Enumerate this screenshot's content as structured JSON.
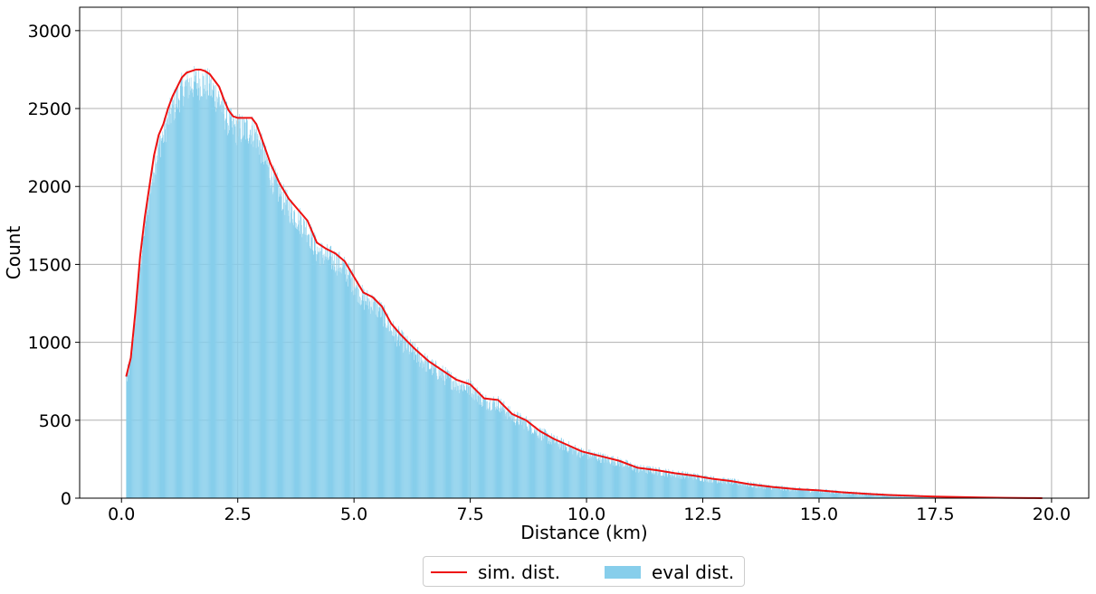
{
  "chart_data": {
    "type": "bar",
    "title": "",
    "xlabel": "Distance (km)",
    "ylabel": "Count",
    "xlim": [
      -0.9,
      20.8
    ],
    "ylim": [
      0,
      3150
    ],
    "xticks": [
      0.0,
      2.5,
      5.0,
      7.5,
      10.0,
      12.5,
      15.0,
      17.5,
      20.0
    ],
    "xtick_labels": [
      "0.0",
      "2.5",
      "5.0",
      "7.5",
      "10.0",
      "12.5",
      "15.0",
      "17.5",
      "20.0"
    ],
    "yticks": [
      0,
      500,
      1000,
      1500,
      2000,
      2500,
      3000
    ],
    "ytick_labels": [
      "0",
      "500",
      "1000",
      "1500",
      "2000",
      "2500",
      "3000"
    ],
    "grid": true,
    "legend_position": "bottom-center",
    "colors": {
      "histogram": "#87ceeb",
      "line": "#ee1111"
    },
    "series": [
      {
        "name": "sim. dist.",
        "type": "line",
        "x": [
          0.1,
          0.2,
          0.3,
          0.4,
          0.5,
          0.6,
          0.7,
          0.8,
          0.9,
          1.0,
          1.1,
          1.2,
          1.3,
          1.4,
          1.5,
          1.6,
          1.7,
          1.8,
          1.9,
          2.0,
          2.1,
          2.2,
          2.3,
          2.4,
          2.5,
          2.6,
          2.7,
          2.8,
          2.9,
          3.0,
          3.2,
          3.4,
          3.6,
          3.8,
          4.0,
          4.2,
          4.4,
          4.6,
          4.8,
          5.0,
          5.2,
          5.4,
          5.6,
          5.8,
          6.0,
          6.3,
          6.6,
          6.9,
          7.2,
          7.5,
          7.8,
          8.1,
          8.4,
          8.7,
          9.0,
          9.3,
          9.6,
          9.9,
          10.3,
          10.7,
          11.1,
          11.5,
          11.9,
          12.3,
          12.7,
          13.1,
          13.5,
          14.0,
          14.5,
          15.0,
          15.5,
          16.0,
          16.5,
          17.0,
          17.5,
          18.0,
          18.5,
          19.0,
          19.5,
          19.8
        ],
        "values": [
          780,
          900,
          1200,
          1550,
          1800,
          2000,
          2200,
          2330,
          2400,
          2500,
          2580,
          2640,
          2700,
          2730,
          2740,
          2750,
          2750,
          2740,
          2720,
          2680,
          2640,
          2560,
          2490,
          2450,
          2440,
          2440,
          2440,
          2440,
          2400,
          2320,
          2150,
          2020,
          1920,
          1850,
          1780,
          1640,
          1600,
          1570,
          1520,
          1420,
          1320,
          1290,
          1230,
          1120,
          1050,
          960,
          880,
          820,
          760,
          730,
          640,
          630,
          540,
          500,
          430,
          380,
          340,
          300,
          270,
          240,
          195,
          180,
          160,
          145,
          125,
          110,
          90,
          72,
          58,
          50,
          38,
          28,
          20,
          15,
          10,
          7,
          4,
          2,
          1,
          0
        ]
      },
      {
        "name": "eval dist.",
        "type": "histogram",
        "bin_width": 0.01,
        "x_range": [
          0.1,
          19.8
        ],
        "notes": "dense histogram closely following the sim. dist. curve; peak ~3000 near x=1.4"
      }
    ]
  }
}
